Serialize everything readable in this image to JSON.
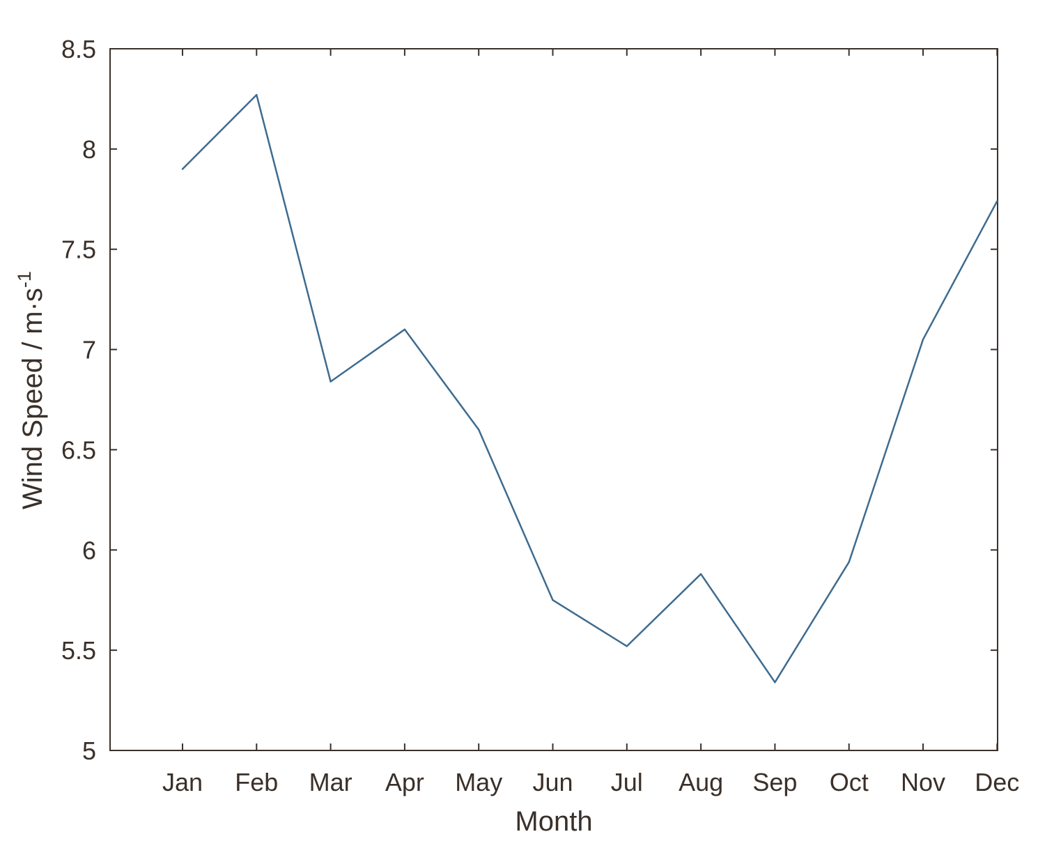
{
  "chart_data": {
    "type": "line",
    "title": "",
    "xlabel": "Month",
    "ylabel_main": "Wind Speed / m·s",
    "ylabel_superscript": "-1",
    "categories": [
      "Jan",
      "Feb",
      "Mar",
      "Apr",
      "May",
      "Jun",
      "Jul",
      "Aug",
      "Sep",
      "Oct",
      "Nov",
      "Dec"
    ],
    "series": [
      {
        "values": [
          7.9,
          8.27,
          6.84,
          7.1,
          6.6,
          5.75,
          5.52,
          5.88,
          5.34,
          5.94,
          7.05,
          7.74
        ]
      }
    ],
    "ylim": [
      5,
      8.5
    ],
    "yticks": [
      "5",
      "5.5",
      "6",
      "6.5",
      "7",
      "7.5",
      "8",
      "8.5"
    ],
    "grid": false,
    "colors": {
      "line": "#3d6b8f",
      "axis": "#3a302a",
      "text": "#3a302a"
    }
  }
}
